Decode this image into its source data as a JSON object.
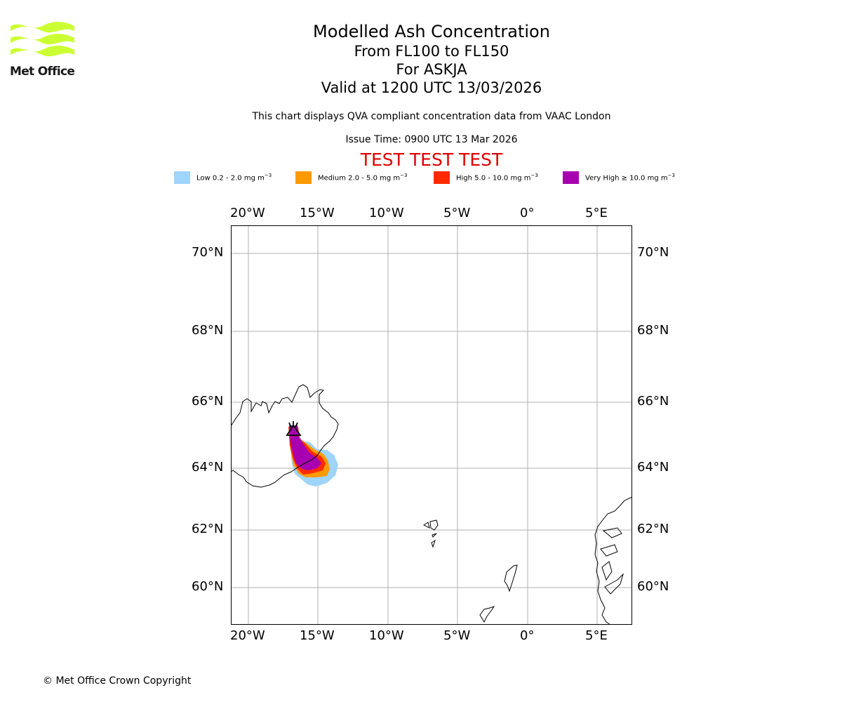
{
  "logo": {
    "text": "Met Office"
  },
  "titles": {
    "main": "Modelled Ash Concentration",
    "levels": "From FL100 to FL150",
    "volcano": "For ASKJA",
    "valid": "Valid at 1200 UTC 13/03/2026"
  },
  "notes": {
    "qva": "This chart displays QVA compliant concentration data from VAAC London",
    "issue": "Issue Time: 0900 UTC 13 Mar 2026"
  },
  "test_banner": "TEST TEST TEST",
  "legend": [
    {
      "label": "Low 0.2 - 2.0 mg m",
      "color": "#9fd4fb"
    },
    {
      "label": "Medium 2.0 - 5.0 mg m",
      "color": "#ff9900"
    },
    {
      "label": "High 5.0 - 10.0 mg m",
      "color": "#ff2a00"
    },
    {
      "label": "Very High  ≥  10.0 mg m",
      "color": "#a800b0"
    }
  ],
  "legend_unit_exponent": "−3",
  "axes": {
    "lon_labels": [
      "20°W",
      "15°W",
      "10°W",
      "5°W",
      "0°",
      "5°E"
    ],
    "lat_labels": [
      "70°N",
      "68°N",
      "66°N",
      "64°N",
      "62°N",
      "60°N"
    ]
  },
  "copyright": "© Met Office Crown Copyright",
  "colors": {
    "grid": "#b0b0b0",
    "test_banner": "#e00000",
    "logo": "#ccff33"
  }
}
